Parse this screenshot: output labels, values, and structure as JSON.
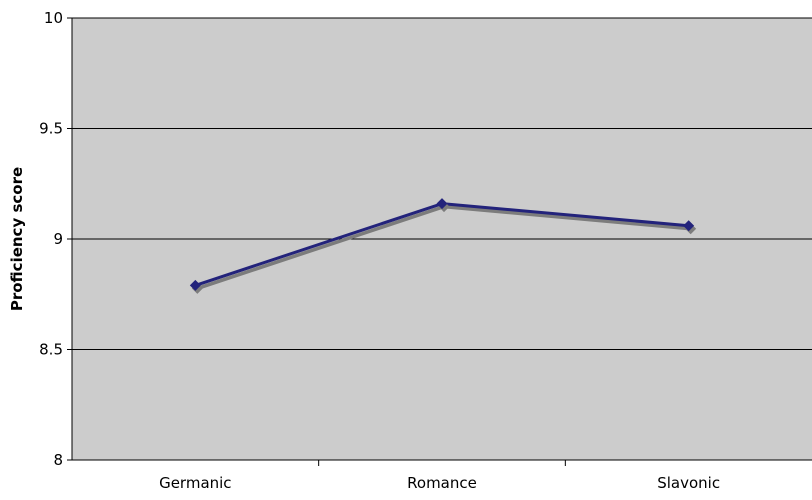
{
  "chart_data": {
    "type": "line",
    "title": "",
    "xlabel": "",
    "ylabel": "Proficiency score",
    "categories": [
      "Germanic",
      "Romance",
      "Slavonic"
    ],
    "series": [
      {
        "values": [
          8.79,
          9.16,
          9.06
        ],
        "color": "#23237b",
        "shadow_color": "#7c7c7c",
        "marker": "diamond"
      }
    ],
    "ylim": [
      8,
      10
    ],
    "yticks": [
      8,
      8.5,
      9,
      9.5,
      10
    ],
    "ytick_labels": [
      "8",
      "8.5",
      "9",
      "9.5",
      "10"
    ],
    "grid": "horizontal",
    "plot_background": "#cccccc",
    "legend": "none"
  }
}
